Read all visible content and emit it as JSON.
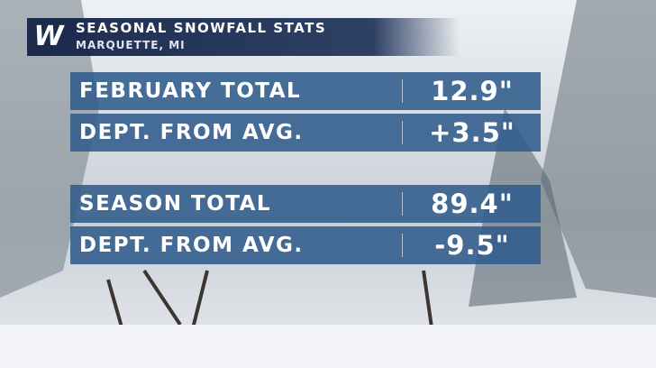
{
  "header": {
    "logo": "W",
    "title": "SEASONAL SNOWFALL STATS",
    "subtitle": "MARQUETTE, MI"
  },
  "groups": [
    {
      "rows": [
        {
          "label": "FEBRUARY TOTAL",
          "value": "12.9\""
        },
        {
          "label": "DEPT. FROM AVG.",
          "value": "+3.5\""
        }
      ]
    },
    {
      "rows": [
        {
          "label": "SEASON TOTAL",
          "value": "89.4\""
        },
        {
          "label": "DEPT. FROM AVG.",
          "value": "-9.5\""
        }
      ]
    }
  ]
}
